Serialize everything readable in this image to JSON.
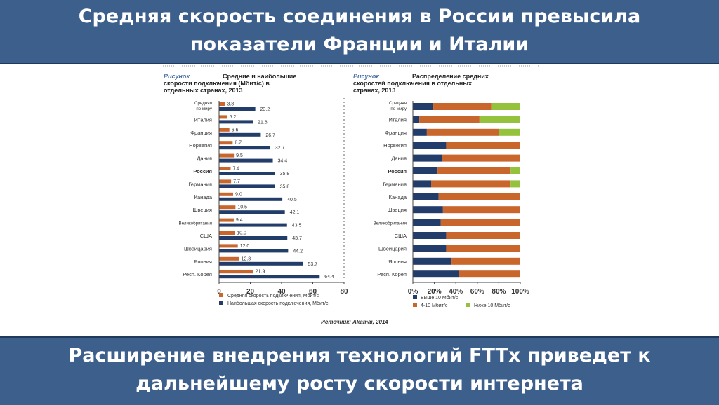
{
  "header": {
    "line1": "Средняя скорость соединения в России превысила",
    "line2": "показатели Франции и Италии"
  },
  "footer": {
    "line1": "Расширение внедрения технологий FTTx приведет к",
    "line2": "дальнейшему росту скорости интернета"
  },
  "source": "Источник: Akamai, 2014",
  "colors": {
    "banner": "#3c5f8c",
    "navy": "#233d6b",
    "orange": "#c8662b",
    "green": "#94c23c",
    "figure_label": "#4a6fa5"
  },
  "chart_data": [
    {
      "type": "bar",
      "orientation": "horizontal",
      "figure_label": "Рисунок",
      "title": "Средние и наибольшие скорости подключения (Мбит/с) в отдельных странах, 2013",
      "title_lines": [
        "Средние и наибольшие",
        "скорости подключения (Мбит/с) в",
        "отдельных странах, 2013"
      ],
      "categories": [
        "Средняя по миру",
        "Италия",
        "Франция",
        "Норвегия",
        "Дания",
        "Россия",
        "Германия",
        "Канада",
        "Швеция",
        "Великобритания",
        "США",
        "Швейцария",
        "Япония",
        "Респ. Корея"
      ],
      "category_lines": [
        [
          "Средняя",
          "по миру"
        ],
        [
          "Италия"
        ],
        [
          "Франция"
        ],
        [
          "Норвегия"
        ],
        [
          "Дания"
        ],
        [
          "Россия"
        ],
        [
          "Германия"
        ],
        [
          "Канада"
        ],
        [
          "Швеция"
        ],
        [
          "Великобритания"
        ],
        [
          "США"
        ],
        [
          "Швейцария"
        ],
        [
          "Япония"
        ],
        [
          "Респ. Корея"
        ]
      ],
      "highlight_category": "Россия",
      "series": [
        {
          "name": "Средняя скорость подключения, Мбит/с",
          "color": "#c8662b",
          "values": [
            3.8,
            5.2,
            6.6,
            8.7,
            9.5,
            7.4,
            7.7,
            9.0,
            10.5,
            9.4,
            10.0,
            12.0,
            12.8,
            21.9
          ],
          "labels": [
            "3.8",
            "5.2",
            "6.6",
            "8.7",
            "9.5",
            "7.4",
            "7.7",
            "9.0",
            "10.5",
            "9.4",
            "10.0",
            "12.0",
            "12.8",
            "21.9"
          ]
        },
        {
          "name": "Наибольшая скорость подключения, Мбит/с",
          "color": "#233d6b",
          "values": [
            23.2,
            21.6,
            26.7,
            32.7,
            34.4,
            35.8,
            35.8,
            40.5,
            42.1,
            43.5,
            43.7,
            44.2,
            53.7,
            64.4
          ],
          "labels": [
            "23.2",
            "21.6",
            "26.7",
            "32.7",
            "34.4",
            "35.8",
            "35.8",
            "40.5",
            "42.1",
            "43.5",
            "43.7",
            "44.2",
            "53.7",
            "64.4"
          ]
        }
      ],
      "xlim": [
        0,
        80
      ],
      "xticks": [
        "0",
        "20",
        "40",
        "60",
        "80"
      ],
      "xtick_values": [
        0,
        20,
        40,
        60,
        80
      ],
      "legend": "bottom"
    },
    {
      "type": "bar",
      "stacked": "percent",
      "orientation": "horizontal",
      "figure_label": "Рисунок",
      "title": "Распределение средних скоростей подключения в отдельных странах, 2013",
      "title_lines": [
        "Распределение средних",
        "скоростей подключения в отдельных",
        "странах, 2013"
      ],
      "categories": [
        "Средняя по миру",
        "Италия",
        "Франция",
        "Норвегия",
        "Дания",
        "Россия",
        "Германия",
        "Канада",
        "Швеция",
        "Великобритания",
        "США",
        "Швейцария",
        "Япония",
        "Респ. Корея"
      ],
      "category_lines": [
        [
          "Средняя",
          "по миру"
        ],
        [
          "Италия"
        ],
        [
          "Франция"
        ],
        [
          "Норвегия"
        ],
        [
          "Дания"
        ],
        [
          "Россия"
        ],
        [
          "Германия"
        ],
        [
          "Канада"
        ],
        [
          "Швеция"
        ],
        [
          "Великобритания"
        ],
        [
          "США"
        ],
        [
          "Швейцария"
        ],
        [
          "Япония"
        ],
        [
          "Респ. Корея"
        ]
      ],
      "highlight_category": "Россия",
      "series": [
        {
          "name": "Выше 10 Мбит/с",
          "color": "#233d6b",
          "values": [
            19,
            6,
            13,
            31,
            27,
            23,
            17,
            24,
            28,
            26,
            31,
            31,
            36,
            43
          ]
        },
        {
          "name": "4-10 Мбит/с",
          "color": "#c8662b",
          "values": [
            54,
            56,
            67,
            69,
            73,
            68,
            74,
            76,
            72,
            74,
            69,
            69,
            64,
            57
          ]
        },
        {
          "name": "Ниже 10 Мбит/с",
          "color": "#94c23c",
          "values": [
            27,
            38,
            20,
            0,
            0,
            9,
            9,
            0,
            0,
            0,
            0,
            0,
            0,
            0
          ]
        }
      ],
      "xlim": [
        0,
        100
      ],
      "xticks": [
        "0%",
        "20%",
        "40%",
        "60%",
        "80%",
        "100%"
      ],
      "xtick_values": [
        0,
        20,
        40,
        60,
        80,
        100
      ],
      "legend": "bottom"
    }
  ]
}
